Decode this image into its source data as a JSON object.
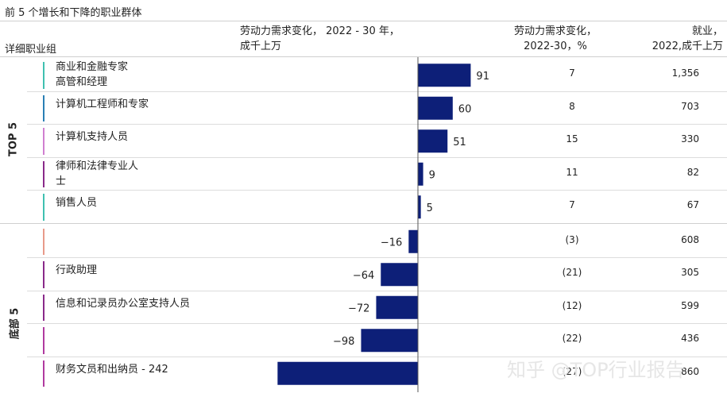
{
  "title": "前 5 个增长和下降的职业群体",
  "headers": {
    "group": "详细职业组",
    "change_line1": "劳动力需求变化，   2022 - 30 年，",
    "change_line2": "成千上万",
    "pct_line1": "劳动力需求变化，",
    "pct_line2": "2022-30，%",
    "emp_line1": "就业，",
    "emp_line2": "2022,成千上万"
  },
  "sections": {
    "top": "TOP 5",
    "bottom": "底部 5"
  },
  "watermark": "知乎 @TOP行业报告",
  "colors": {
    "bar": "#0d1f78",
    "axis": "#555555"
  },
  "chart_data": {
    "type": "bar",
    "orientation": "horizontal",
    "categories": [
      "商业和金融专家\n高管和经理",
      "计算机工程师和专家",
      "计算机支持人员",
      "律师和法律专业人\n士",
      "销售人员",
      "",
      "行政助理",
      "信息和记录员办公室支持人员",
      "",
      "财务文员和出纳员 - 242"
    ],
    "values": [
      91,
      60,
      51,
      9,
      5,
      -16,
      -64,
      -72,
      -98,
      -242
    ],
    "value_labels": [
      "91",
      "60",
      "51",
      "9",
      "5",
      "−16",
      "−64",
      "−72",
      "−98",
      ""
    ],
    "pct_change": [
      "7",
      "8",
      "15",
      "11",
      "7",
      "(3)",
      "(21)",
      "(12)",
      "(22)",
      "(27)"
    ],
    "employment_2022": [
      "1,356",
      "703",
      "330",
      "82",
      "67",
      "608",
      "305",
      "599",
      "436",
      "860"
    ],
    "marker_colors": [
      "#3fc0b0",
      "#2a7fb5",
      "#d07fd0",
      "#8a2a8a",
      "#3fc0b0",
      "#e89a8a",
      "#8a2a8a",
      "#8a2a8a",
      "#b03aa0",
      "#b03aa0"
    ],
    "xlabel": "",
    "ylabel": ""
  }
}
